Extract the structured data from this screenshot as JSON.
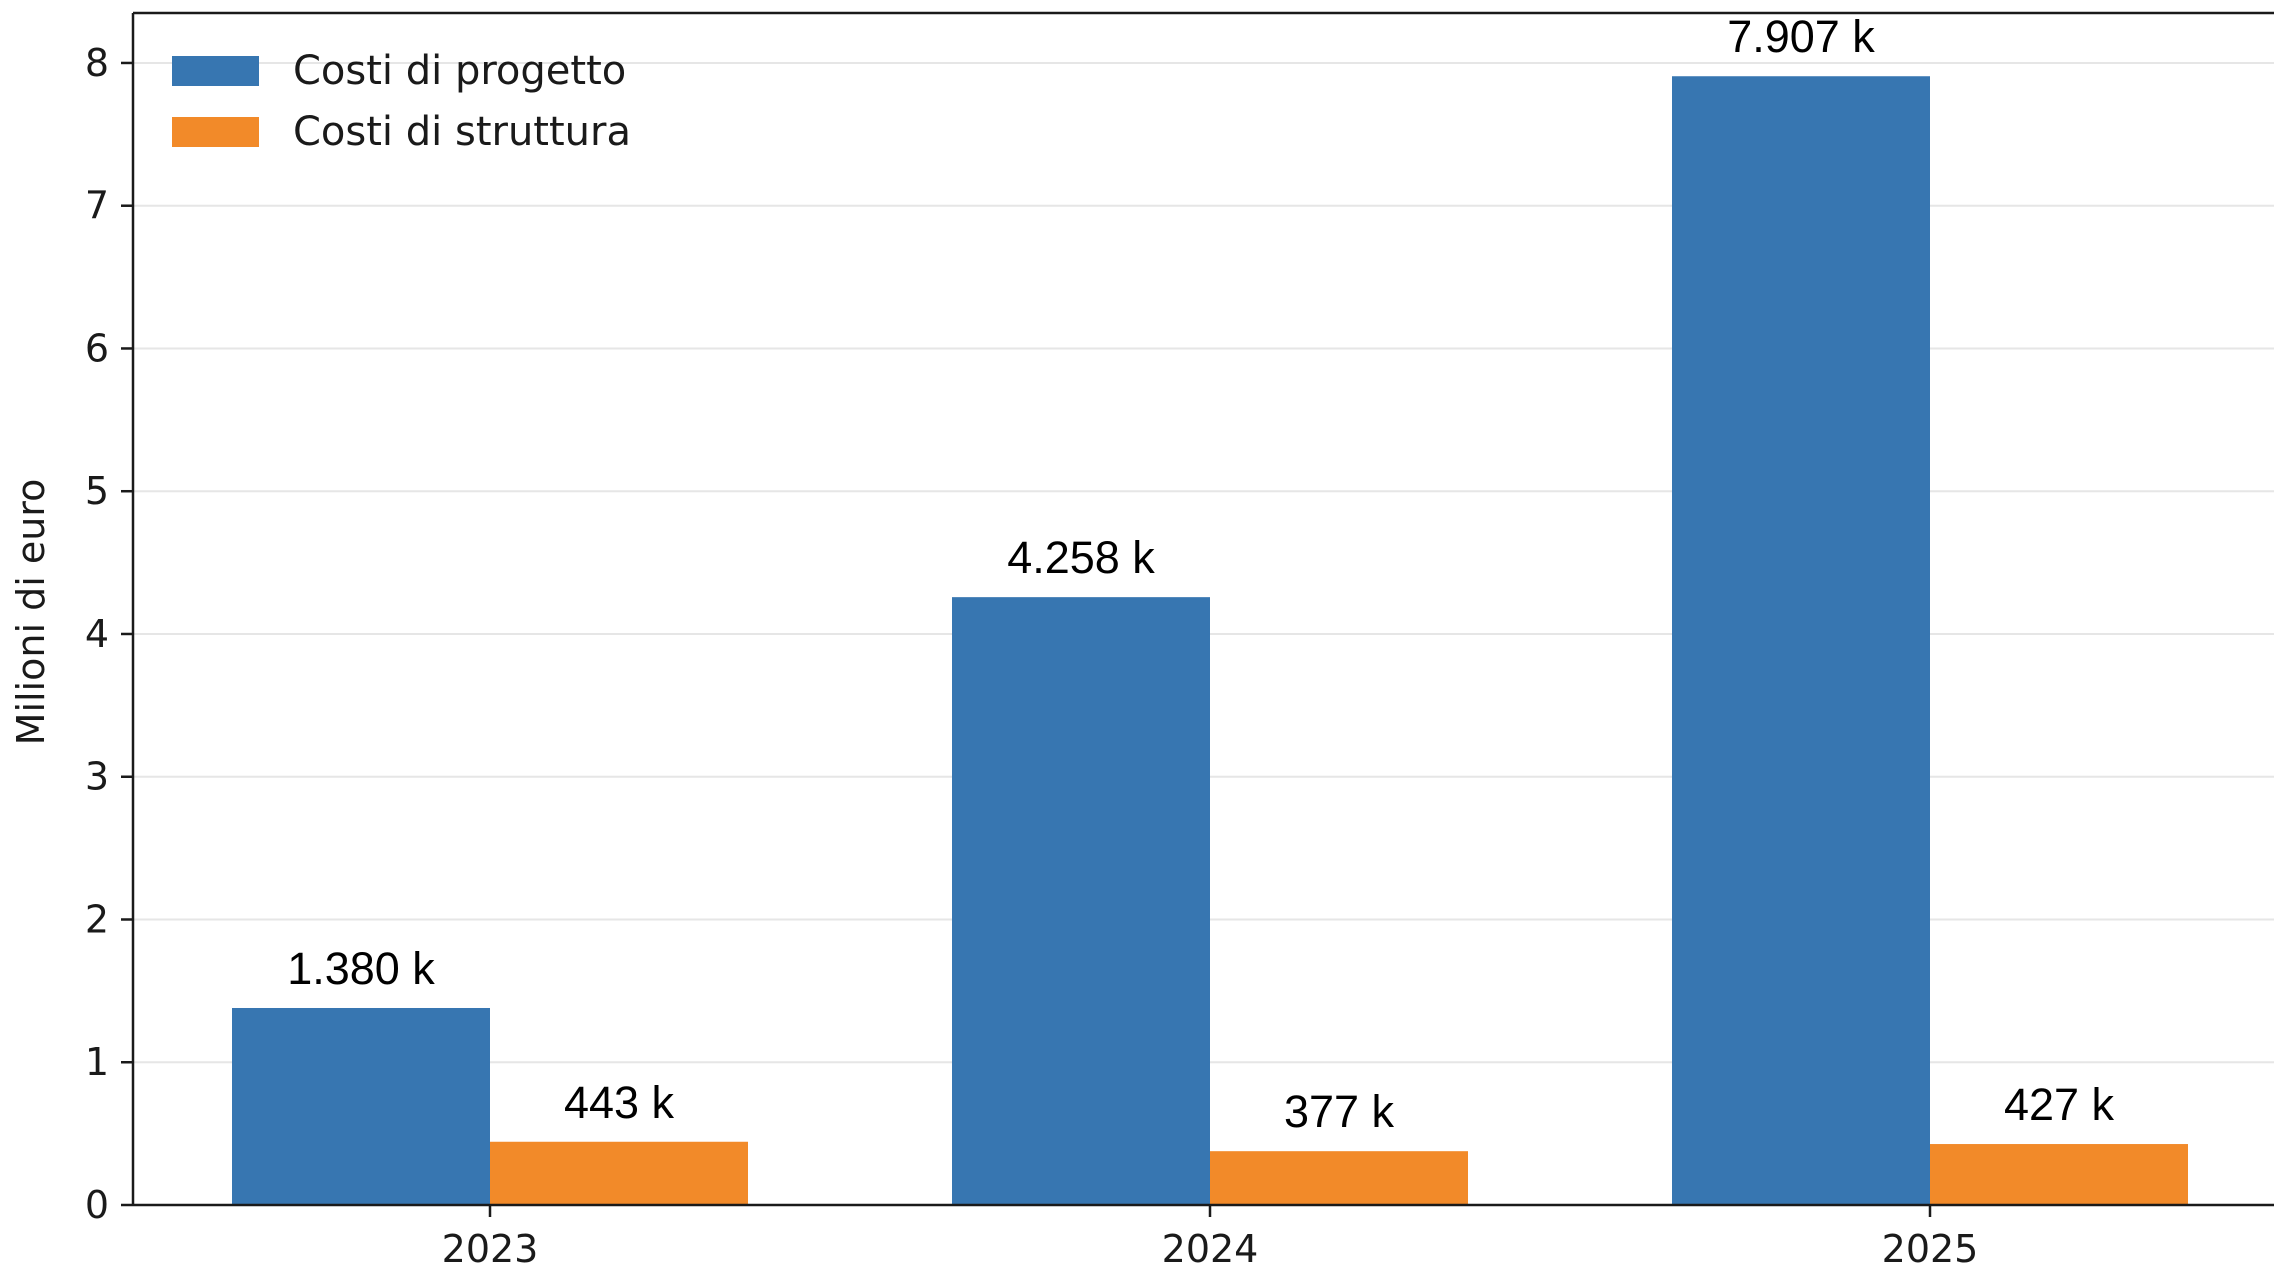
{
  "chart_data": {
    "type": "bar",
    "categories": [
      "2023",
      "2024",
      "2025"
    ],
    "series": [
      {
        "name": "Costi di progetto",
        "color": "#3776b1",
        "values": [
          1.38,
          4.258,
          7.907
        ],
        "labels": [
          "1.380 k",
          "4.258 k",
          "7.907 k"
        ]
      },
      {
        "name": "Costi di struttura",
        "color": "#f28a29",
        "values": [
          0.443,
          0.377,
          0.427
        ],
        "labels": [
          "443 k",
          "377 k",
          "427 k"
        ]
      }
    ],
    "title": "",
    "xlabel": "",
    "ylabel": "Milioni di euro",
    "ylim": [
      0,
      8.35
    ],
    "yticks": [
      0,
      1,
      2,
      3,
      4,
      5,
      6,
      7,
      8
    ],
    "grid": "horizontal",
    "legend_position": "top-left"
  }
}
